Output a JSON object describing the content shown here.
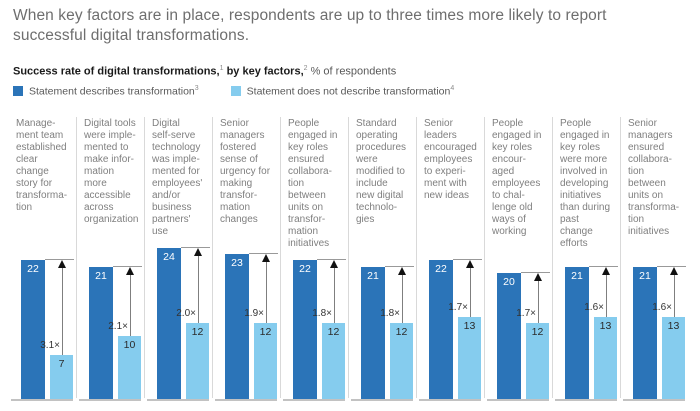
{
  "title": "When key factors are in place, respondents are up to three times more likely to report successful digital transformations.",
  "subtitle": {
    "bold_a": "Success rate of digital transformations,",
    "sup_a": "1",
    "bold_b": " by key factors,",
    "sup_b": "2",
    "rest": " % of respondents"
  },
  "legend": {
    "items": [
      {
        "label": "Statement describes transformation",
        "sup": "3",
        "color": "#2b74b8"
      },
      {
        "label": "Statement does not describe transformation",
        "sup": "4",
        "color": "#85ccee"
      }
    ]
  },
  "colors": {
    "dark_blue": "#2b74b8",
    "light_blue": "#85ccee",
    "title_gray": "#6e6e6e",
    "header_gray": "#7f7f7f",
    "divider_gray": "#d9d9d9",
    "baseline_gray": "#c2c2c2",
    "arrow_gray": "#7f7f7f"
  },
  "chart_data": {
    "type": "bar",
    "title": "Success rate of digital transformations, by key factors, % of respondents",
    "ylim": [
      0,
      24
    ],
    "grid": false,
    "legend_position": "top-left",
    "categories": [
      "Manage-\nment team\nestablished\nclear\nchange\nstory for\ntransforma-\ntion",
      "Digital tools\nwere imple-\nmented to\nmake infor-\nmation\nmore\naccessible\nacross\norganization",
      "Digital\nself-serve\ntechnology\nwas imple-\nmented for\nemployees'\nand/or\nbusiness\npartners'\nuse",
      "Senior\nmanagers\nfostered\nsense of\nurgency for\nmaking\ntransfor-\nmation\nchanges",
      "People\nengaged in\nkey roles\nensured\ncollabora-\ntion\nbetween\nunits on\ntransfor-\nmation\ninitiatives",
      "Standard\noperating\nprocedures\nwere\nmodified to\ninclude\nnew digital\ntechnolo-\ngies",
      "Senior\nleaders\nencouraged\nemployees\nto experi-\nment with\nnew ideas",
      "People\nengaged in\nkey roles\nencour-\naged\nemployees\nto chal-\nlenge old\nways of\nworking",
      "People\nengaged in\nkey roles\nwere more\ninvolved in\ndeveloping\ninitiatives\nthan during\npast\nchange\nefforts",
      "Senior\nmanagers\nensured\ncollabora-\ntion\nbetween\nunits on\ntransforma-\ntion\ninitiatives"
    ],
    "series": [
      {
        "name": "Statement describes transformation",
        "color": "#2b74b8",
        "values": [
          22,
          21,
          24,
          23,
          22,
          21,
          22,
          20,
          21,
          21
        ]
      },
      {
        "name": "Statement does not describe transformation",
        "color": "#85ccee",
        "values": [
          7,
          10,
          12,
          12,
          12,
          12,
          13,
          12,
          13,
          13
        ]
      }
    ],
    "multipliers": [
      "3.1×",
      "2.1×",
      "2.0×",
      "1.9×",
      "1.8×",
      "1.8×",
      "1.7×",
      "1.7×",
      "1.6×",
      "1.6×"
    ]
  }
}
